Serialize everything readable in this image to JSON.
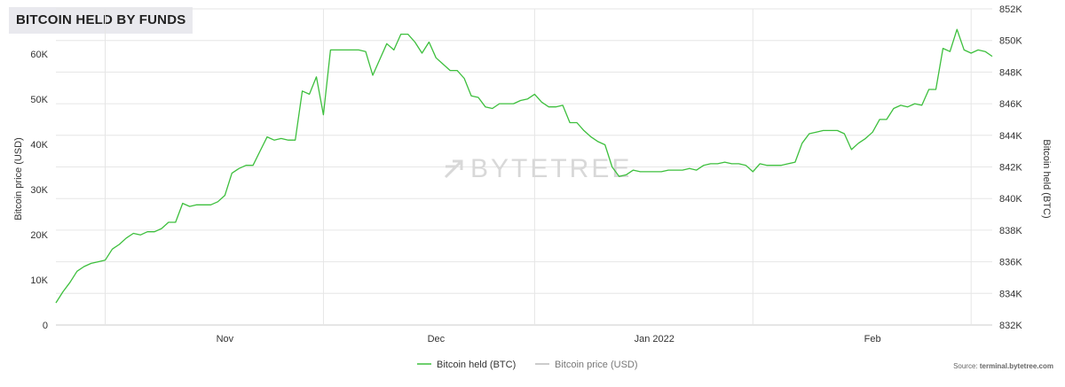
{
  "title": "BITCOIN HELD BY FUNDS",
  "watermark": "BYTETREE",
  "source": {
    "prefix": "Source: ",
    "link": "terminal.bytetree.com"
  },
  "colors": {
    "btc_line": "#3dbf3d",
    "price_line": "#bbbbbb",
    "grid": "#e6e6e6"
  },
  "chart_data": {
    "type": "line",
    "x_unit": "date",
    "x_range": [
      "2021-10-08",
      "2022-02-12"
    ],
    "x_ticks": [
      {
        "label": "Nov",
        "date": "2021-11-01"
      },
      {
        "label": "Dec",
        "date": "2021-12-01"
      },
      {
        "label": "Jan 2022",
        "date": "2022-01-01"
      },
      {
        "label": "Feb",
        "date": "2022-02-01"
      }
    ],
    "y_left": {
      "label": "Bitcoin price (USD)",
      "ylim": [
        0,
        70000
      ],
      "ticks": [
        0,
        10000,
        20000,
        30000,
        40000,
        50000,
        60000
      ],
      "tick_labels": [
        "0",
        "10K",
        "20K",
        "30K",
        "40K",
        "50K",
        "60K"
      ]
    },
    "y_right": {
      "label": "Bitcoin held (BTC)",
      "ylim": [
        832000,
        852000
      ],
      "ticks": [
        832000,
        834000,
        836000,
        838000,
        840000,
        842000,
        844000,
        846000,
        848000,
        850000,
        852000
      ],
      "tick_labels": [
        "832K",
        "834K",
        "836K",
        "838K",
        "840K",
        "842K",
        "844K",
        "846K",
        "848K",
        "850K",
        "852K"
      ]
    },
    "legend_position": "bottom-center",
    "series": [
      {
        "name": "Bitcoin held (BTC)",
        "axis": "right",
        "color": "#3dbf3d",
        "points": [
          [
            "2021-10-08",
            833400
          ],
          [
            "2021-10-09",
            834100
          ],
          [
            "2021-10-10",
            834700
          ],
          [
            "2021-10-11",
            835400
          ],
          [
            "2021-10-12",
            835700
          ],
          [
            "2021-10-13",
            835900
          ],
          [
            "2021-10-14",
            836000
          ],
          [
            "2021-10-15",
            836100
          ],
          [
            "2021-10-16",
            836800
          ],
          [
            "2021-10-17",
            837100
          ],
          [
            "2021-10-18",
            837500
          ],
          [
            "2021-10-19",
            837800
          ],
          [
            "2021-10-20",
            837700
          ],
          [
            "2021-10-21",
            837900
          ],
          [
            "2021-10-22",
            837900
          ],
          [
            "2021-10-23",
            838100
          ],
          [
            "2021-10-24",
            838500
          ],
          [
            "2021-10-25",
            838500
          ],
          [
            "2021-10-26",
            839700
          ],
          [
            "2021-10-27",
            839500
          ],
          [
            "2021-10-28",
            839600
          ],
          [
            "2021-10-29",
            839600
          ],
          [
            "2021-10-30",
            839600
          ],
          [
            "2021-10-31",
            839800
          ],
          [
            "2021-11-01",
            840200
          ],
          [
            "2021-11-02",
            841600
          ],
          [
            "2021-11-03",
            841900
          ],
          [
            "2021-11-04",
            842100
          ],
          [
            "2021-11-05",
            842100
          ],
          [
            "2021-11-06",
            843000
          ],
          [
            "2021-11-07",
            843900
          ],
          [
            "2021-11-08",
            843700
          ],
          [
            "2021-11-09",
            843800
          ],
          [
            "2021-11-10",
            843700
          ],
          [
            "2021-11-11",
            843700
          ],
          [
            "2021-11-12",
            846800
          ],
          [
            "2021-11-13",
            846600
          ],
          [
            "2021-11-14",
            847700
          ],
          [
            "2021-11-15",
            845300
          ],
          [
            "2021-11-16",
            849400
          ],
          [
            "2021-11-17",
            849400
          ],
          [
            "2021-11-18",
            849400
          ],
          [
            "2021-11-19",
            849400
          ],
          [
            "2021-11-20",
            849400
          ],
          [
            "2021-11-21",
            849300
          ],
          [
            "2021-11-22",
            847800
          ],
          [
            "2021-11-23",
            848800
          ],
          [
            "2021-11-24",
            849800
          ],
          [
            "2021-11-25",
            849400
          ],
          [
            "2021-11-26",
            850400
          ],
          [
            "2021-11-27",
            850400
          ],
          [
            "2021-11-28",
            849900
          ],
          [
            "2021-11-29",
            849200
          ],
          [
            "2021-11-30",
            849900
          ],
          [
            "2021-12-01",
            848900
          ],
          [
            "2021-12-02",
            848500
          ],
          [
            "2021-12-03",
            848100
          ],
          [
            "2021-12-04",
            848100
          ],
          [
            "2021-12-05",
            847600
          ],
          [
            "2021-12-06",
            846500
          ],
          [
            "2021-12-07",
            846400
          ],
          [
            "2021-12-08",
            845800
          ],
          [
            "2021-12-09",
            845700
          ],
          [
            "2021-12-10",
            846000
          ],
          [
            "2021-12-11",
            846000
          ],
          [
            "2021-12-12",
            846000
          ],
          [
            "2021-12-13",
            846200
          ],
          [
            "2021-12-14",
            846300
          ],
          [
            "2021-12-15",
            846600
          ],
          [
            "2021-12-16",
            846100
          ],
          [
            "2021-12-17",
            845800
          ],
          [
            "2021-12-18",
            845800
          ],
          [
            "2021-12-19",
            845900
          ],
          [
            "2021-12-20",
            844800
          ],
          [
            "2021-12-21",
            844800
          ],
          [
            "2021-12-22",
            844300
          ],
          [
            "2021-12-23",
            843900
          ],
          [
            "2021-12-24",
            843600
          ],
          [
            "2021-12-25",
            843400
          ],
          [
            "2021-12-26",
            842000
          ],
          [
            "2021-12-27",
            841400
          ],
          [
            "2021-12-28",
            841500
          ],
          [
            "2021-12-29",
            841800
          ],
          [
            "2021-12-30",
            841700
          ],
          [
            "2021-12-31",
            841700
          ],
          [
            "2022-01-01",
            841700
          ],
          [
            "2022-01-02",
            841700
          ],
          [
            "2022-01-03",
            841800
          ],
          [
            "2022-01-04",
            841800
          ],
          [
            "2022-01-05",
            841800
          ],
          [
            "2022-01-06",
            841900
          ],
          [
            "2022-01-07",
            841800
          ],
          [
            "2022-01-08",
            842100
          ],
          [
            "2022-01-09",
            842200
          ],
          [
            "2022-01-10",
            842200
          ],
          [
            "2022-01-11",
            842300
          ],
          [
            "2022-01-12",
            842200
          ],
          [
            "2022-01-13",
            842200
          ],
          [
            "2022-01-14",
            842100
          ],
          [
            "2022-01-15",
            841700
          ],
          [
            "2022-01-16",
            842200
          ],
          [
            "2022-01-17",
            842100
          ],
          [
            "2022-01-18",
            842100
          ],
          [
            "2022-01-19",
            842100
          ],
          [
            "2022-01-20",
            842200
          ],
          [
            "2022-01-21",
            842300
          ],
          [
            "2022-01-22",
            843500
          ],
          [
            "2022-01-23",
            844100
          ],
          [
            "2022-01-24",
            844200
          ],
          [
            "2022-01-25",
            844300
          ],
          [
            "2022-01-26",
            844300
          ],
          [
            "2022-01-27",
            844300
          ],
          [
            "2022-01-28",
            844100
          ],
          [
            "2022-01-29",
            843100
          ],
          [
            "2022-01-30",
            843500
          ],
          [
            "2022-01-31",
            843800
          ],
          [
            "2022-02-01",
            844200
          ],
          [
            "2022-02-02",
            845000
          ],
          [
            "2022-02-03",
            845000
          ],
          [
            "2022-02-04",
            845700
          ],
          [
            "2022-02-05",
            845900
          ],
          [
            "2022-02-06",
            845800
          ],
          [
            "2022-02-07",
            846000
          ],
          [
            "2022-02-08",
            845900
          ],
          [
            "2022-02-09",
            846900
          ],
          [
            "2022-02-10",
            846900
          ],
          [
            "2022-02-11",
            849500
          ],
          [
            "2022-02-12",
            849300
          ],
          [
            "2022-02-13",
            850700
          ],
          [
            "2022-02-14",
            849400
          ],
          [
            "2022-02-15",
            849200
          ],
          [
            "2022-02-16",
            849400
          ],
          [
            "2022-02-17",
            849300
          ],
          [
            "2022-02-18",
            849000
          ]
        ]
      },
      {
        "name": "Bitcoin price (USD)",
        "axis": "left",
        "color": "#bbbbbb",
        "points": []
      }
    ]
  }
}
